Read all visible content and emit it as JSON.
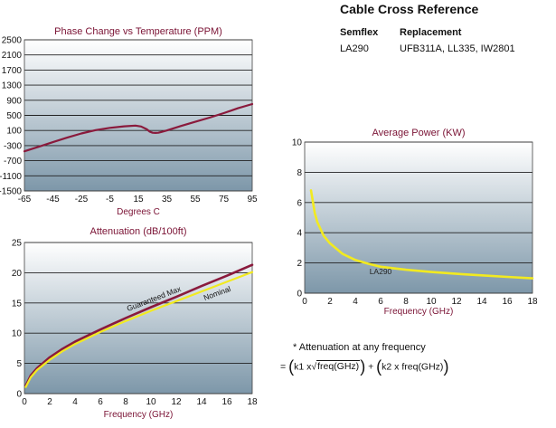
{
  "reference": {
    "title": "Cable Cross Reference",
    "headers": [
      "Semflex",
      "Replacement"
    ],
    "rows": [
      [
        "LA290",
        "UFB311A, LL335, IW2801"
      ]
    ]
  },
  "note": {
    "line1": "* Attenuation at any frequency",
    "lead": "=",
    "k1": "k1 x",
    "sqrt_arg": "freq(GHz)",
    "plus": "+",
    "k2": "k2 x freq(GHz)"
  },
  "colors": {
    "title": "#7a1234",
    "series_dark": "#8a1a3c",
    "series_yellow": "#f2ea20",
    "gradient_top": "#ffffff",
    "gradient_bottom": "#7d97a9"
  },
  "chart_data": [
    {
      "id": "phase",
      "type": "line",
      "title": "Phase Change vs Temperature (PPM)",
      "xlabel": "Degrees C",
      "ylabel": "",
      "xlim": [
        -65,
        95
      ],
      "ylim": [
        -1500,
        2500
      ],
      "xticks": [
        -65,
        -45,
        -25,
        -5,
        15,
        35,
        55,
        75,
        95
      ],
      "yticks": [
        2500,
        2100,
        1700,
        1300,
        900,
        500,
        100,
        -300,
        -700,
        -1100,
        -1500
      ],
      "grid": true,
      "series": [
        {
          "x": [
            -65,
            -55,
            -45,
            -35,
            -25,
            -15,
            -5,
            5,
            13,
            17,
            21,
            23,
            25,
            27,
            29,
            31,
            35,
            45,
            55,
            65,
            75,
            85,
            95
          ],
          "y": [
            -450,
            -330,
            -210,
            -90,
            20,
            110,
            170,
            210,
            230,
            205,
            130,
            70,
            40,
            35,
            40,
            60,
            100,
            220,
            330,
            440,
            560,
            690,
            800
          ]
        }
      ]
    },
    {
      "id": "attenuation",
      "type": "line",
      "title": "Attenuation (dB/100ft)",
      "xlabel": "Frequency (GHz)",
      "ylabel": "",
      "xlim": [
        0,
        18
      ],
      "ylim": [
        0,
        25
      ],
      "xticks": [
        0,
        2,
        4,
        6,
        8,
        10,
        12,
        14,
        16,
        18
      ],
      "yticks": [
        0,
        5,
        10,
        15,
        20,
        25
      ],
      "grid": true,
      "series": [
        {
          "name": "Guaranteed Max",
          "x": [
            0.1,
            0.5,
            1,
            2,
            3,
            4,
            6,
            8,
            10,
            12,
            14,
            16,
            18
          ],
          "y": [
            1.3,
            3.0,
            4.2,
            6.0,
            7.4,
            8.6,
            10.6,
            12.5,
            14.3,
            16.0,
            17.8,
            19.5,
            21.3
          ]
        },
        {
          "name": "Nominal",
          "x": [
            0.1,
            0.5,
            1,
            2,
            3,
            4,
            6,
            8,
            10,
            12,
            14,
            16,
            18
          ],
          "y": [
            1.1,
            2.7,
            3.9,
            5.6,
            7.0,
            8.2,
            10.2,
            12.0,
            13.7,
            15.3,
            16.9,
            18.5,
            20.1
          ]
        }
      ]
    },
    {
      "id": "power",
      "type": "line",
      "title": "Average Power (KW)",
      "xlabel": "Frequency (GHz)",
      "ylabel": "",
      "xlim": [
        0,
        18
      ],
      "ylim": [
        0,
        10
      ],
      "xticks": [
        0,
        2,
        4,
        6,
        8,
        10,
        12,
        14,
        16,
        18
      ],
      "yticks": [
        0,
        2,
        4,
        6,
        8,
        10
      ],
      "grid": true,
      "series": [
        {
          "name": "LA290",
          "x": [
            0.5,
            0.8,
            1,
            1.5,
            2,
            3,
            4,
            5,
            6,
            8,
            10,
            12,
            14,
            16,
            18
          ],
          "y": [
            6.8,
            5.3,
            4.7,
            3.8,
            3.3,
            2.6,
            2.2,
            1.95,
            1.75,
            1.55,
            1.4,
            1.28,
            1.18,
            1.08,
            0.98
          ]
        }
      ]
    }
  ]
}
